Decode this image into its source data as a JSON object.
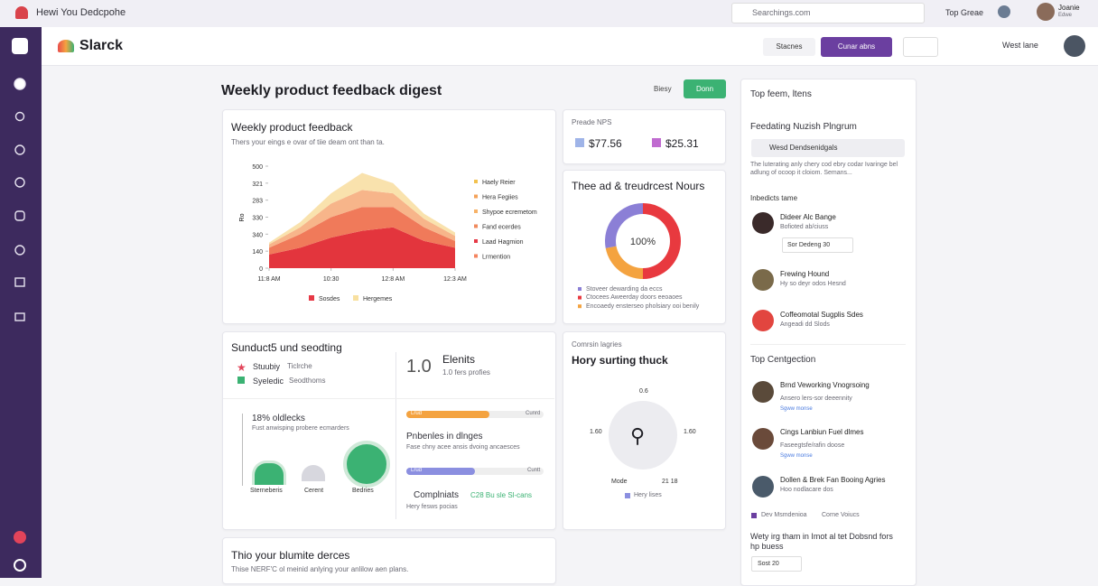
{
  "topbar": {
    "app_title": "Hewi You Dedcpohe",
    "search_placeholder": "Searchings.com",
    "workspace": "Top Greae",
    "user_name": "Joanie",
    "user_role": "Edwe"
  },
  "header": {
    "logo": "Slarck",
    "filter": "Stacnes",
    "primary_button": "Cunar abns",
    "user_label": "West lane"
  },
  "page": {
    "title": "Weekly product feedback digest",
    "secondary_button": "Biesy",
    "primary_button": "Donn"
  },
  "feedback_card": {
    "title": "Weekly product feedback",
    "subtitle": "Thers your eings e ovar of tiie deam ont than ta.",
    "chart": {
      "type": "area",
      "y_label": "Ro",
      "x": [
        0,
        1,
        2,
        3,
        4,
        5,
        6
      ],
      "xlim": [
        0,
        6
      ],
      "xticks": [
        {
          "value": 0,
          "label": "11:8 AM"
        },
        {
          "value": 2,
          "label": "10:30"
        },
        {
          "value": 4,
          "label": "12:8 AM"
        },
        {
          "value": 6,
          "label": "12:3 AM"
        }
      ],
      "ylim": [
        0,
        300
      ],
      "yticks": [
        0,
        {
          "value": 50,
          "label": "140"
        },
        {
          "value": 100,
          "label": "340"
        },
        {
          "value": 150,
          "label": "330"
        },
        {
          "value": 200,
          "label": "283"
        },
        {
          "value": 250,
          "label": "321"
        },
        {
          "value": 300,
          "label": "500"
        }
      ],
      "series": [
        {
          "color": "#e3353d",
          "values": [
            40,
            60,
            90,
            110,
            120,
            80,
            60
          ]
        },
        {
          "color": "#f07a5a",
          "values": [
            20,
            40,
            60,
            70,
            60,
            40,
            20
          ]
        },
        {
          "color": "#f7b58a",
          "values": [
            10,
            20,
            40,
            50,
            40,
            25,
            15
          ]
        },
        {
          "color": "#f9e2ad",
          "values": [
            5,
            15,
            30,
            50,
            30,
            15,
            10
          ]
        }
      ],
      "legend": [
        {
          "name": "Haely Reier",
          "color": "#f2c14e"
        },
        {
          "name": "Hera Fegiies",
          "color": "#f4a259"
        },
        {
          "name": "Shypoe ecremetom",
          "color": "#f7b267"
        },
        {
          "name": "Fand ecerdes",
          "color": "#f08a5d"
        },
        {
          "name": "Laad Hagmion",
          "color": "#e63946"
        },
        {
          "name": "Lrmention",
          "color": "#f4845f"
        }
      ],
      "bottom_legend": [
        {
          "name": "Sosdes",
          "color": "#e63946"
        },
        {
          "name": "Hergemes",
          "color": "#f8e0a0"
        }
      ]
    }
  },
  "nps_card": {
    "title": "Preade NPS",
    "items": [
      "$77.56",
      "$25.31"
    ]
  },
  "donut_card": {
    "title": "Thee ad & treudrcest Nours",
    "center_label": "100%",
    "chart": {
      "type": "pie",
      "values": [
        50,
        22,
        28
      ],
      "colors": [
        "#e8393f",
        "#f4a340",
        "#8b7fd6"
      ]
    },
    "legend": [
      "Stoveer dewarding da eccs",
      "Ctocees Aweerday doors eeoaoes",
      "Encoaedy ensterseo pholsiary ooi benily"
    ]
  },
  "sub_card": {
    "title": "Sunduct5 und seodting",
    "items": [
      {
        "label": "Stuubiy",
        "detail": "Ticlrche"
      },
      {
        "label": "Syeledic",
        "detail": "Seodthoms"
      }
    ],
    "stat": {
      "value": "1.0",
      "title": "Elenits",
      "subtitle": "1.0 fers profies"
    },
    "bubbles": {
      "title": "18% oldlecks",
      "subtitle": "Fust anwisping probere ecmarders",
      "labels": [
        "Sterneberis",
        "Cerent",
        "Bedries"
      ]
    },
    "bars": [
      {
        "label": "Lrud",
        "end": "Cunrd"
      },
      {
        "label": "Lrud",
        "end": "Cuntt"
      }
    ],
    "issues": {
      "title": "Pnbenles in dlnges",
      "subtitle": "Fase chny acee ansis dvoing ancaesces"
    },
    "complaints": {
      "title": "Complniats",
      "badge": "C28 Bu sle Sl-cans",
      "subtitle": "Hery fesws pocias"
    }
  },
  "hory_card": {
    "eyebrow": "Comrsin lagries",
    "title": "Hory surting thuck",
    "top": "0.6",
    "left": "1.60",
    "right": "1.60",
    "bottom_left": "Mode",
    "bottom_right": "21 18",
    "legend": "Hery lises"
  },
  "bottom_card": {
    "title": "Thio your blumite derces",
    "subtitle": "Thise NERF'C ol meinid anlying your anlilow aen plans."
  },
  "side_panel": {
    "title": "Top feem, ltens",
    "section": "Feedating Nuzish Plngrum",
    "chip": "Wesd Dendsenidgals",
    "paragraph": "The luterating anly chery cod ebry codar Ivaringe bel adlung of ocoop it cloiom. Semans...",
    "people_title": "Inbedicts tame",
    "people": [
      {
        "name": "Dideer Alc Bange",
        "detail": "Bofioted ab/ciuss",
        "select": "Sor Dedeng 30"
      },
      {
        "name": "Frewing Hound",
        "detail": "Hy so deyr odos Hesnd"
      },
      {
        "name": "Coffeomotal Sugplis Sdes",
        "detail": "Angeadi dd Slods"
      }
    ],
    "top_title": "Top Centgection",
    "top_items": [
      {
        "name": "Brnd Veworking Vnogrsoing",
        "detail": "Ansero lers-sor deeennity",
        "link": "Sgww monse"
      },
      {
        "name": "Cings Lanbiun Fuel dlmes",
        "detail": "Faseegtsfe/rafin doose",
        "link": "Sgww monse"
      },
      {
        "name": "Dollen & Brek Fan Booing Agries",
        "detail": "Hoo nodlacare dos"
      }
    ],
    "legend": [
      "Dev Msmdenioa",
      "Corne Voiucs"
    ],
    "footer": "Wety irg tham in Imot al tet Dobsnd fors hp buess",
    "select": "Sost 20"
  }
}
